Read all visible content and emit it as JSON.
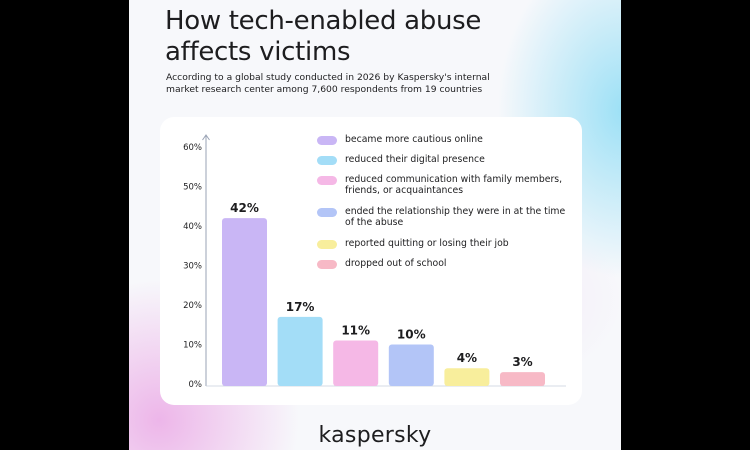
{
  "header": {
    "title_line1": "How tech-enabled abuse",
    "title_line2": "affects victims",
    "subtitle_line1": "According to a global study conducted in 2026 by Kaspersky's internal",
    "subtitle_line2": "market research center among 7,600 respondents from 19 countries"
  },
  "brand": {
    "name": "kaspersky"
  },
  "colors": {
    "bar_purple": "#c9b6f5",
    "bar_cyan": "#a3ddf7",
    "bar_pink": "#f5b8e6",
    "bar_blue": "#b3c5f7",
    "bar_yellow": "#f8ee9c",
    "bar_rose": "#f7b9c6"
  },
  "chart_data": {
    "type": "bar",
    "categories": [
      "became more cautious online",
      "reduced their digital presence",
      "reduced communication with family members, friends, or acquaintances",
      "ended the relationship they were in at the time of the abuse",
      "reported quitting or losing their job",
      "dropped out of school"
    ],
    "values": [
      42,
      17,
      11,
      10,
      4,
      3
    ],
    "value_labels": [
      "42%",
      "17%",
      "11%",
      "10%",
      "4%",
      "3%"
    ],
    "colors": [
      "#c9b6f5",
      "#a3ddf7",
      "#f5b8e6",
      "#b3c5f7",
      "#f8ee9c",
      "#f7b9c6"
    ],
    "yticks": [
      0,
      10,
      20,
      30,
      40,
      50,
      60
    ],
    "ytick_labels": [
      "0%",
      "10%",
      "20%",
      "30%",
      "40%",
      "50%",
      "60%"
    ],
    "ylim": [
      0,
      60
    ],
    "grid": false,
    "legend_position": "top-right",
    "legend": [
      {
        "line1": "became more cautious online",
        "line2": ""
      },
      {
        "line1": "reduced their digital presence",
        "line2": ""
      },
      {
        "line1": "reduced communication with family members,",
        "line2": "friends, or acquaintances"
      },
      {
        "line1": "ended the relationship they were in at the time",
        "line2": "of the abuse"
      },
      {
        "line1": "reported quitting or losing their job",
        "line2": ""
      },
      {
        "line1": "dropped out of school",
        "line2": ""
      }
    ]
  }
}
